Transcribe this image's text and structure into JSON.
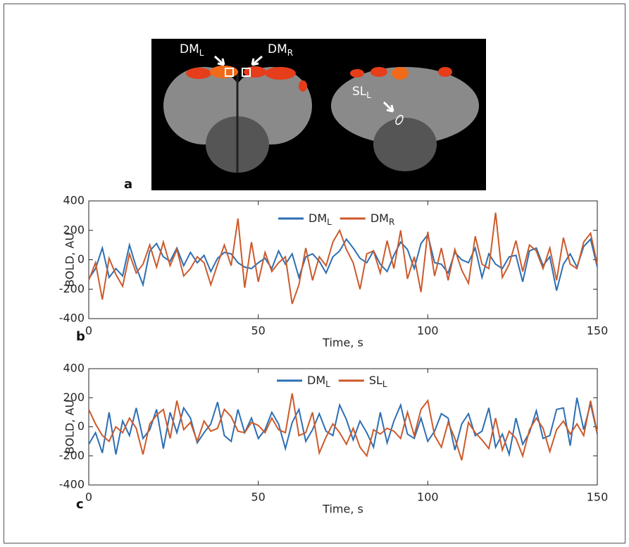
{
  "image_panel": {
    "label": "a",
    "annotations": [
      {
        "text": "DM",
        "sub": "L"
      },
      {
        "text": "DM",
        "sub": "R"
      },
      {
        "text": "SL",
        "sub": "L"
      }
    ]
  },
  "chart_data": [
    {
      "type": "line",
      "panel_label": "b",
      "xlabel": "Time, s",
      "ylabel": "BOLD, AU",
      "xlim": [
        0,
        150
      ],
      "ylim": [
        -400,
        400
      ],
      "xticks": [
        0,
        50,
        100,
        150
      ],
      "yticks": [
        -400,
        -200,
        0,
        200,
        400
      ],
      "x": [
        0,
        2,
        4,
        6,
        8,
        10,
        12,
        14,
        16,
        18,
        20,
        22,
        24,
        26,
        28,
        30,
        32,
        34,
        36,
        38,
        40,
        42,
        44,
        46,
        48,
        50,
        52,
        54,
        56,
        58,
        60,
        62,
        64,
        66,
        68,
        70,
        72,
        74,
        76,
        78,
        80,
        82,
        84,
        86,
        88,
        90,
        92,
        94,
        96,
        98,
        100,
        102,
        104,
        106,
        108,
        110,
        112,
        114,
        116,
        118,
        120,
        122,
        124,
        126,
        128,
        130,
        132,
        134,
        136,
        138,
        140,
        142,
        144,
        146,
        148,
        150
      ],
      "series": [
        {
          "name": "DM",
          "sub": "L",
          "color": "#2c6fb3",
          "values": [
            -130,
            -60,
            80,
            -120,
            -60,
            -110,
            100,
            -50,
            -170,
            60,
            110,
            20,
            -10,
            80,
            -40,
            50,
            -20,
            30,
            -80,
            10,
            50,
            40,
            -20,
            -50,
            -60,
            -20,
            10,
            -60,
            60,
            -30,
            40,
            -120,
            20,
            40,
            -10,
            -90,
            20,
            60,
            140,
            80,
            10,
            -20,
            60,
            -30,
            -80,
            30,
            120,
            70,
            -60,
            110,
            170,
            -20,
            -30,
            -90,
            50,
            0,
            -20,
            80,
            -120,
            40,
            -30,
            -60,
            20,
            30,
            -150,
            60,
            80,
            -40,
            20,
            -210,
            -30,
            40,
            -50,
            90,
            140,
            -50
          ]
        },
        {
          "name": "DM",
          "sub": "R",
          "color": "#cc5a2b",
          "values": [
            -140,
            -20,
            -270,
            10,
            -100,
            -180,
            40,
            -90,
            -30,
            100,
            -50,
            120,
            -40,
            70,
            -110,
            -60,
            20,
            -20,
            -170,
            -30,
            100,
            -40,
            280,
            -190,
            120,
            -150,
            50,
            -80,
            -20,
            20,
            -300,
            -170,
            80,
            -140,
            20,
            -40,
            120,
            200,
            70,
            -20,
            -200,
            40,
            60,
            -90,
            130,
            -60,
            200,
            -130,
            20,
            -220,
            190,
            -110,
            80,
            -140,
            70,
            -70,
            -160,
            160,
            -30,
            -60,
            320,
            -120,
            -30,
            130,
            -80,
            100,
            60,
            -60,
            80,
            -140,
            150,
            -30,
            -60,
            120,
            180,
            -30
          ]
        }
      ]
    },
    {
      "type": "line",
      "panel_label": "c",
      "xlabel": "Time, s",
      "ylabel": "BOLD, AU",
      "xlim": [
        0,
        150
      ],
      "ylim": [
        -400,
        400
      ],
      "xticks": [
        0,
        50,
        100,
        150
      ],
      "yticks": [
        -400,
        -200,
        0,
        200,
        400
      ],
      "x": [
        0,
        2,
        4,
        6,
        8,
        10,
        12,
        14,
        16,
        18,
        20,
        22,
        24,
        26,
        28,
        30,
        32,
        34,
        36,
        38,
        40,
        42,
        44,
        46,
        48,
        50,
        52,
        54,
        56,
        58,
        60,
        62,
        64,
        66,
        68,
        70,
        72,
        74,
        76,
        78,
        80,
        82,
        84,
        86,
        88,
        90,
        92,
        94,
        96,
        98,
        100,
        102,
        104,
        106,
        108,
        110,
        112,
        114,
        116,
        118,
        120,
        122,
        124,
        126,
        128,
        130,
        132,
        134,
        136,
        138,
        140,
        142,
        144,
        146,
        148,
        150
      ],
      "series": [
        {
          "name": "DM",
          "sub": "L",
          "color": "#2c6fb3",
          "values": [
            -120,
            -40,
            -180,
            100,
            -190,
            40,
            -60,
            130,
            -80,
            -20,
            120,
            -150,
            100,
            -40,
            130,
            60,
            -110,
            -40,
            20,
            170,
            -60,
            -100,
            120,
            -40,
            60,
            -80,
            -20,
            100,
            20,
            -150,
            30,
            120,
            -100,
            -20,
            90,
            -30,
            -60,
            150,
            50,
            -90,
            40,
            -40,
            -140,
            100,
            -110,
            40,
            150,
            -50,
            -80,
            60,
            -100,
            -30,
            90,
            60,
            -160,
            20,
            90,
            -60,
            -30,
            130,
            -140,
            -50,
            -190,
            60,
            -120,
            -40,
            110,
            -80,
            -60,
            120,
            130,
            -130,
            200,
            -20,
            160,
            -50
          ]
        },
        {
          "name": "SL",
          "sub": "L",
          "color": "#cc5a2b",
          "values": [
            120,
            20,
            -60,
            -100,
            0,
            -40,
            60,
            -10,
            -190,
            20,
            80,
            120,
            -80,
            180,
            -20,
            30,
            -100,
            40,
            -30,
            -10,
            120,
            70,
            -30,
            -40,
            30,
            10,
            -40,
            60,
            -20,
            -40,
            230,
            -60,
            -40,
            100,
            -180,
            -70,
            20,
            -40,
            -120,
            -10,
            -140,
            -200,
            -20,
            -50,
            -10,
            -30,
            -80,
            100,
            -60,
            120,
            180,
            -60,
            -140,
            30,
            -80,
            -230,
            30,
            -40,
            -90,
            -150,
            60,
            -160,
            -30,
            -80,
            -200,
            -20,
            60,
            -10,
            -170,
            -20,
            40,
            -50,
            20,
            -60,
            180,
            -40
          ]
        }
      ]
    }
  ]
}
